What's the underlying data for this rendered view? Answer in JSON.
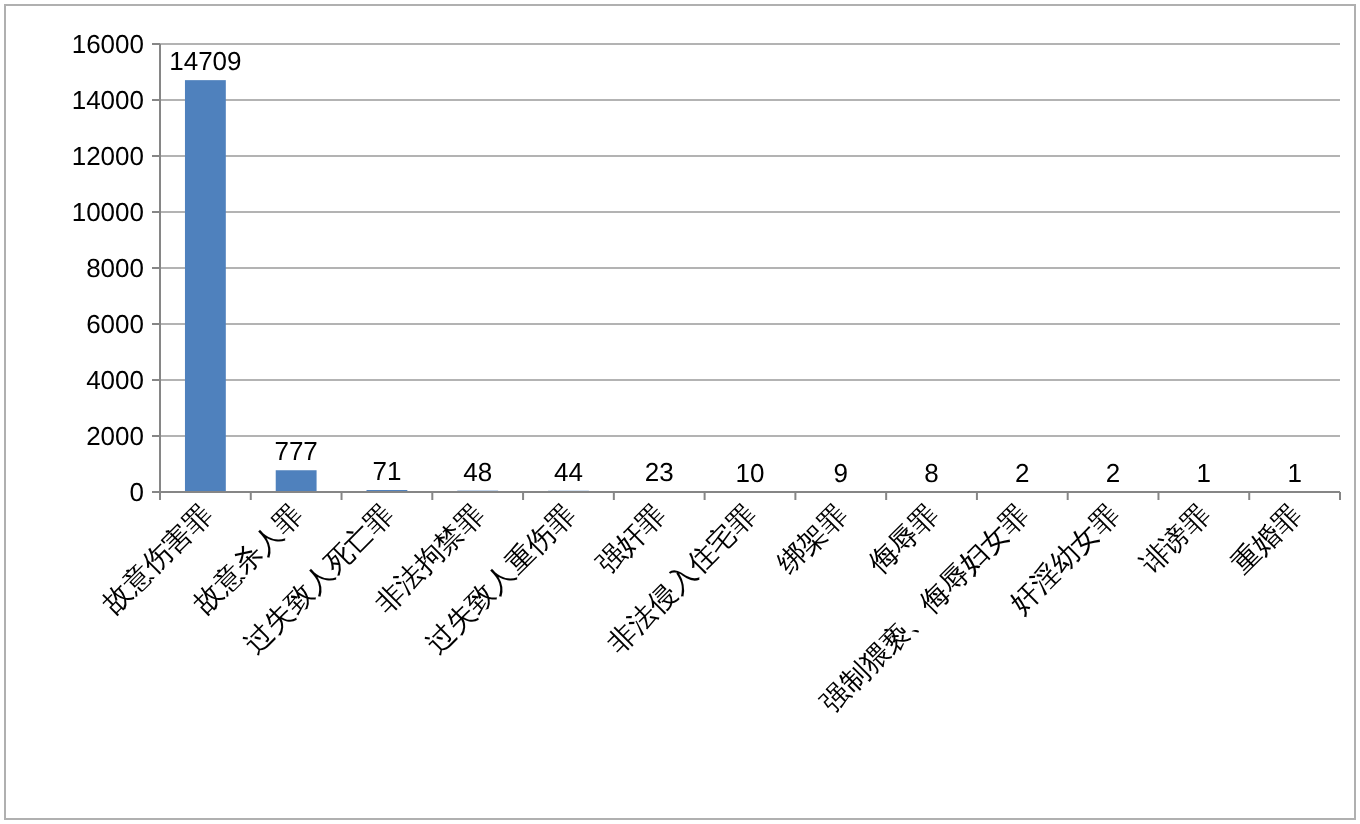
{
  "chart_data": {
    "type": "bar",
    "categories": [
      "故意伤害罪",
      "故意杀人罪",
      "过失致人死亡罪",
      "非法拘禁罪",
      "过失致人重伤罪",
      "强奸罪",
      "非法侵入住宅罪",
      "绑架罪",
      "侮辱罪",
      "强制猥亵、侮辱妇女罪",
      "奸淫幼女罪",
      "诽谤罪",
      "重婚罪"
    ],
    "values": [
      14709,
      777,
      71,
      48,
      44,
      23,
      10,
      9,
      8,
      2,
      2,
      1,
      1
    ],
    "color": "#4f81bd",
    "ylim": [
      0,
      16000
    ],
    "yticks": [
      0,
      2000,
      4000,
      6000,
      8000,
      10000,
      12000,
      14000,
      16000
    ],
    "grid": "y",
    "data_labels": true
  }
}
